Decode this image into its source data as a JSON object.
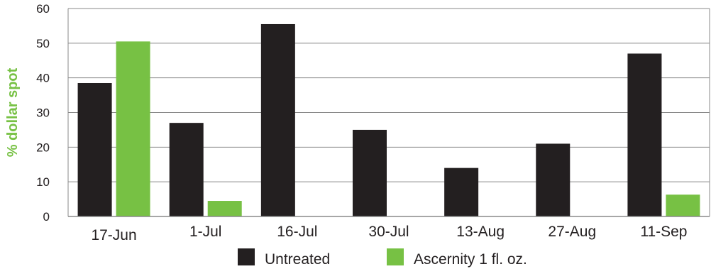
{
  "chart_data": {
    "type": "bar",
    "title": "",
    "xlabel": "",
    "ylabel": "% dollar spot",
    "ylim": [
      0,
      60
    ],
    "yticks": [
      0,
      10,
      20,
      30,
      40,
      50,
      60
    ],
    "grid": true,
    "legend_position": "bottom",
    "categories": [
      "17-Jun",
      "1-Jul",
      "16-Jul",
      "30-Jul",
      "13-Aug",
      "27-Aug",
      "11-Sep"
    ],
    "series": [
      {
        "name": "Untreated",
        "color": "#231f20",
        "values": [
          38.5,
          27,
          55.5,
          25,
          14,
          21,
          47
        ]
      },
      {
        "name": "Ascernity 1 fl. oz.",
        "color": "#77c144",
        "values": [
          50.5,
          4.5,
          0,
          0,
          0,
          0,
          6.3
        ]
      }
    ],
    "colors": {
      "axis": "#8a8a8a",
      "grid": "#8a8a8a",
      "ylabel": "#77c144"
    }
  }
}
